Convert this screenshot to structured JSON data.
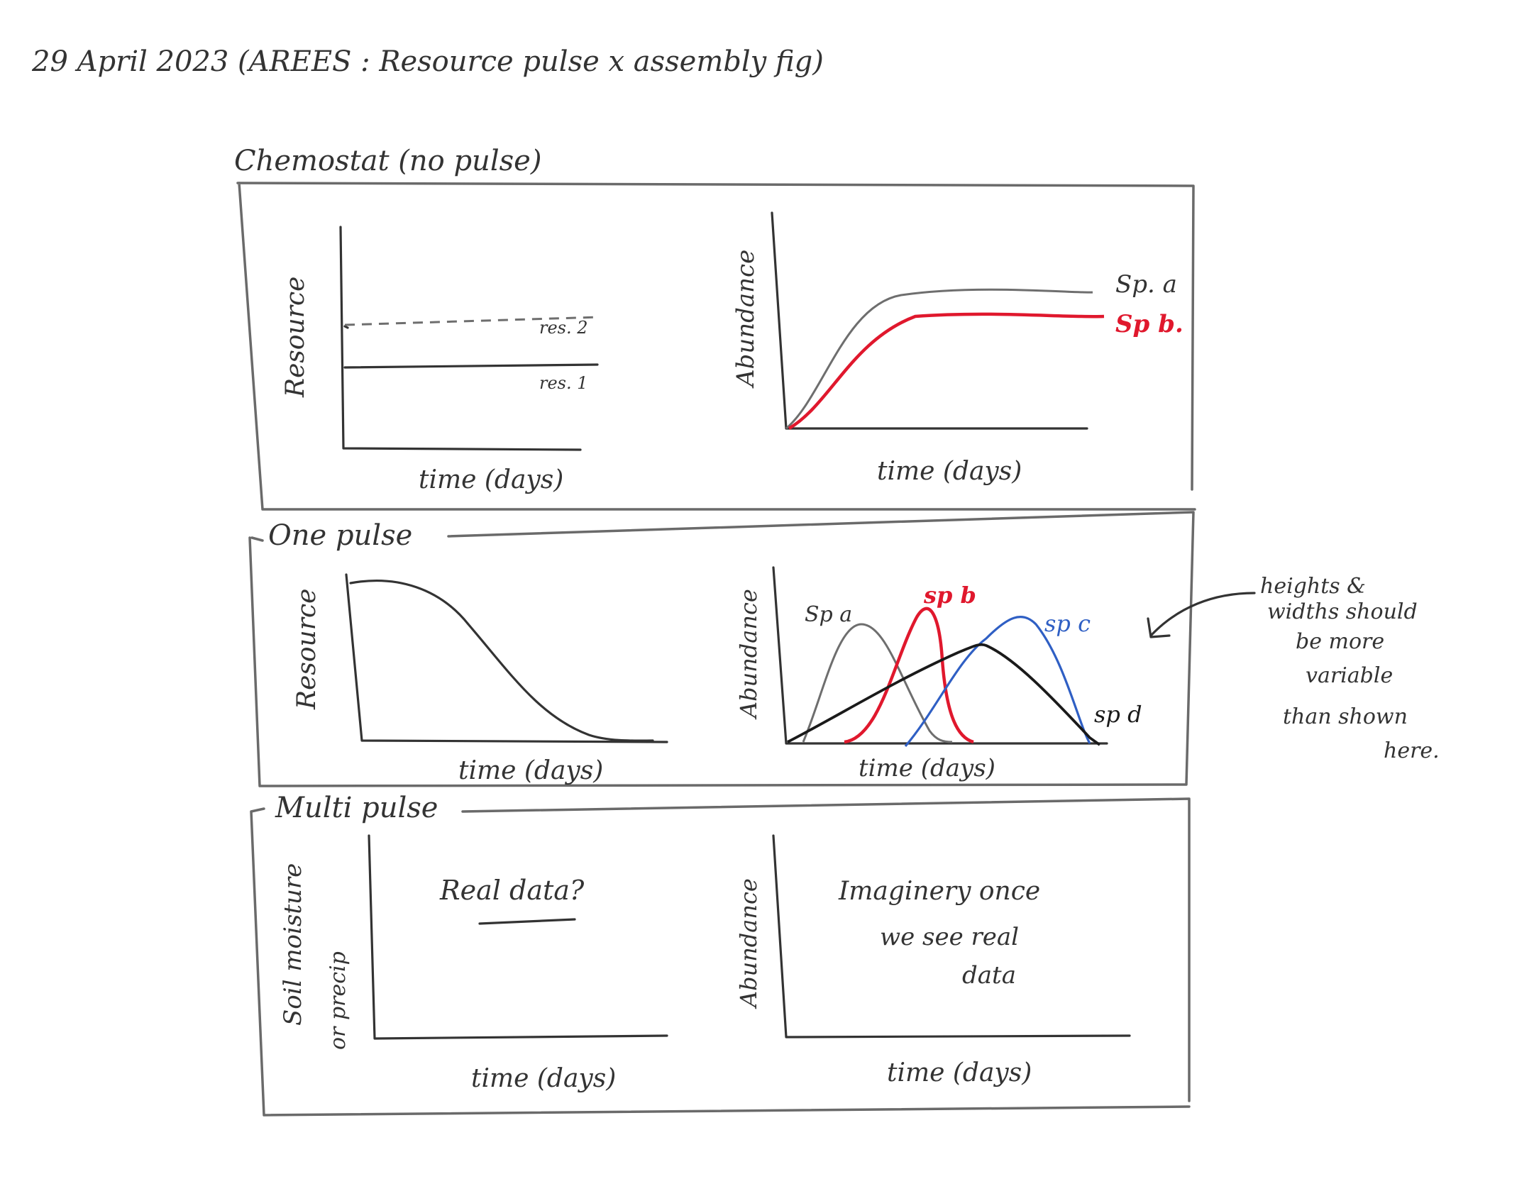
{
  "header": {
    "title": "29 April 2023 (AREES : Resource pulse x assembly fig)"
  },
  "panels": {
    "chemostat": {
      "label": "Chemostat (no pulse)",
      "left": {
        "ylabel": "Resource",
        "xlabel": "time (days)",
        "res2": "res. 2",
        "res1": "res. 1"
      },
      "right": {
        "ylabel": "Abundance",
        "xlabel": "time (days)",
        "spa": "Sp. a",
        "spb": "Sp b."
      }
    },
    "one_pulse": {
      "label": "One pulse",
      "left": {
        "ylabel": "Resource",
        "xlabel": "time (days)"
      },
      "right": {
        "ylabel": "Abundance",
        "xlabel": "time (days)",
        "spa": "Sp a",
        "spb": "sp b",
        "spc": "sp c",
        "spd": "sp d"
      }
    },
    "multi_pulse": {
      "label": "Multi pulse",
      "left": {
        "ylabel_line1": "Soil moisture",
        "ylabel_line2": "or precip",
        "xlabel": "time (days)",
        "note": "Real data?"
      },
      "right": {
        "ylabel": "Abundance",
        "xlabel": "time (days)",
        "note_line1": "Imaginery once",
        "note_line2": "we see real",
        "note_line3": "data"
      }
    }
  },
  "annotation": {
    "lines": [
      "heights &",
      "widths should",
      "be more",
      "variable",
      "than shown",
      "here."
    ]
  },
  "colors": {
    "red": "#e0182d",
    "blue": "#2f5fc4",
    "gray": "#6e6e6e",
    "black": "#1a1a1a"
  }
}
